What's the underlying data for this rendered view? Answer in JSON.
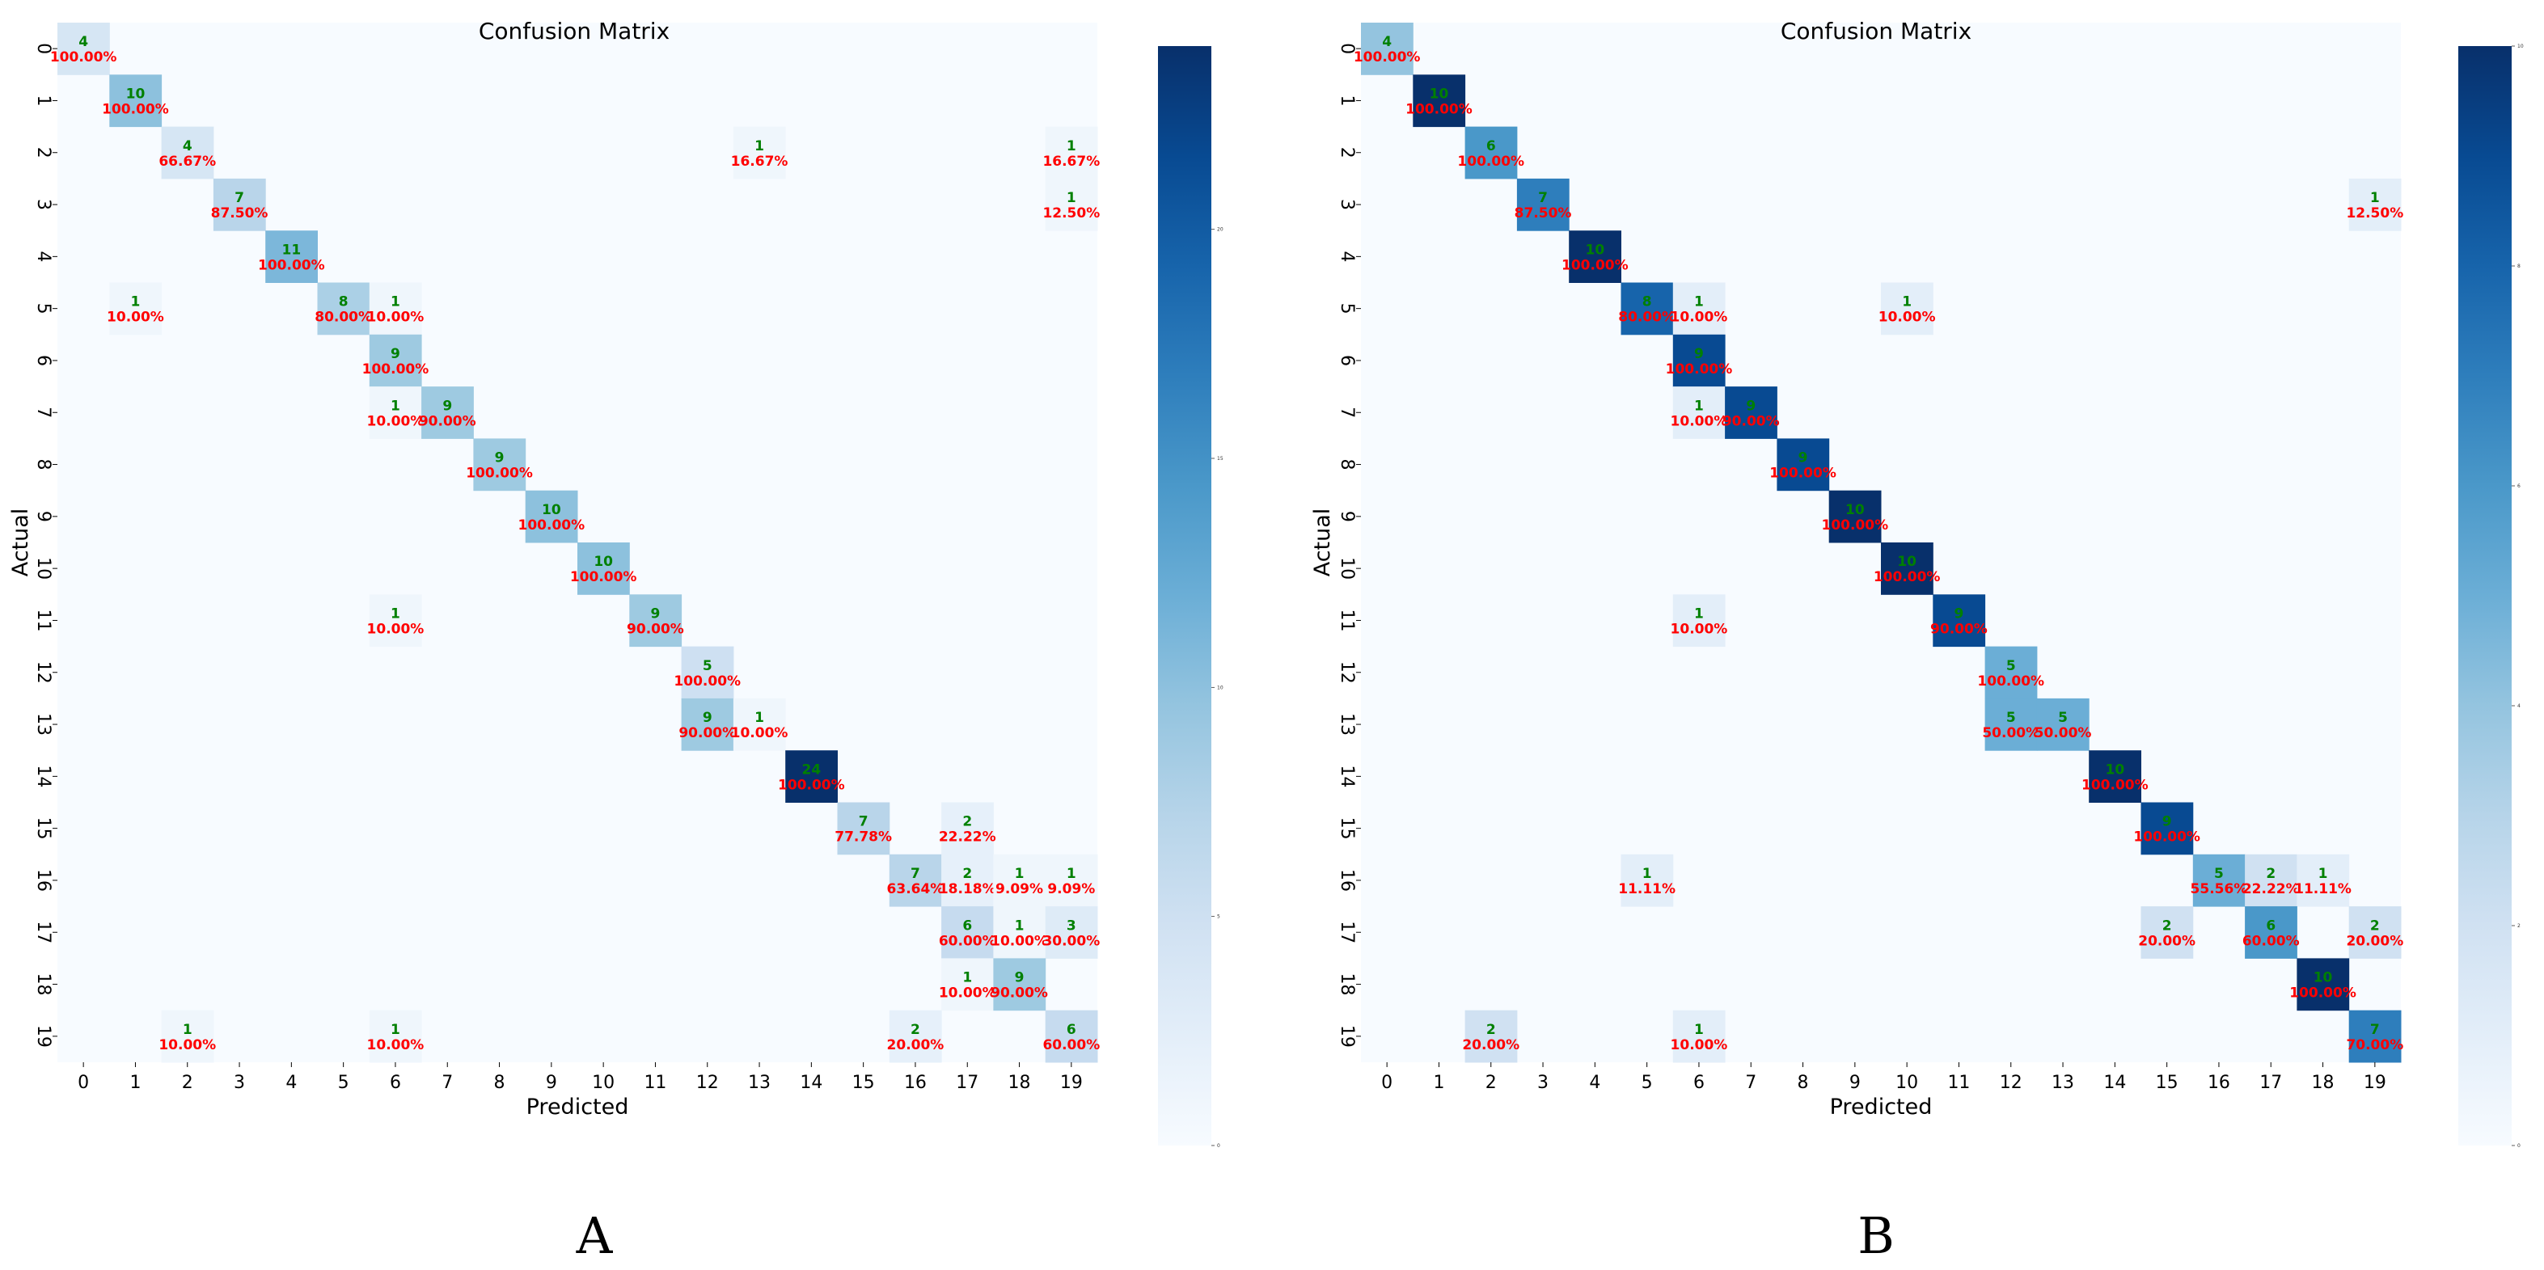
{
  "chart_data": [
    {
      "type": "heatmap",
      "panel_label": "A",
      "title": "Confusion Matrix",
      "xlabel": "Predicted",
      "ylabel": "Actual",
      "colormap": "Blues",
      "vmax": 24,
      "colorbar_ticks": [
        "0",
        "5",
        "10",
        "15",
        "20"
      ],
      "colorbar_values": [
        0,
        5,
        10,
        15,
        20
      ],
      "classes": [
        "0",
        "1",
        "2",
        "3",
        "4",
        "5",
        "6",
        "7",
        "8",
        "9",
        "10",
        "11",
        "12",
        "13",
        "14",
        "15",
        "16",
        "17",
        "18",
        "19"
      ],
      "cells": [
        {
          "row": 0,
          "col": 0,
          "count": "4",
          "percent": "100.00%",
          "v": 4
        },
        {
          "row": 1,
          "col": 1,
          "count": "10",
          "percent": "100.00%",
          "v": 10
        },
        {
          "row": 2,
          "col": 2,
          "count": "4",
          "percent": "66.67%",
          "v": 4
        },
        {
          "row": 2,
          "col": 13,
          "count": "1",
          "percent": "16.67%",
          "v": 1
        },
        {
          "row": 2,
          "col": 19,
          "count": "1",
          "percent": "16.67%",
          "v": 1
        },
        {
          "row": 3,
          "col": 3,
          "count": "7",
          "percent": "87.50%",
          "v": 7
        },
        {
          "row": 3,
          "col": 19,
          "count": "1",
          "percent": "12.50%",
          "v": 1
        },
        {
          "row": 4,
          "col": 4,
          "count": "11",
          "percent": "100.00%",
          "v": 11
        },
        {
          "row": 5,
          "col": 1,
          "count": "1",
          "percent": "10.00%",
          "v": 1
        },
        {
          "row": 5,
          "col": 5,
          "count": "8",
          "percent": "80.00%",
          "v": 8
        },
        {
          "row": 5,
          "col": 6,
          "count": "1",
          "percent": "10.00%",
          "v": 1
        },
        {
          "row": 6,
          "col": 6,
          "count": "9",
          "percent": "100.00%",
          "v": 9
        },
        {
          "row": 7,
          "col": 6,
          "count": "1",
          "percent": "10.00%",
          "v": 1
        },
        {
          "row": 7,
          "col": 7,
          "count": "9",
          "percent": "90.00%",
          "v": 9
        },
        {
          "row": 8,
          "col": 8,
          "count": "9",
          "percent": "100.00%",
          "v": 9
        },
        {
          "row": 9,
          "col": 9,
          "count": "10",
          "percent": "100.00%",
          "v": 10
        },
        {
          "row": 10,
          "col": 10,
          "count": "10",
          "percent": "100.00%",
          "v": 10
        },
        {
          "row": 11,
          "col": 6,
          "count": "1",
          "percent": "10.00%",
          "v": 1
        },
        {
          "row": 11,
          "col": 11,
          "count": "9",
          "percent": "90.00%",
          "v": 9
        },
        {
          "row": 12,
          "col": 12,
          "count": "5",
          "percent": "100.00%",
          "v": 5
        },
        {
          "row": 13,
          "col": 12,
          "count": "9",
          "percent": "90.00%",
          "v": 9
        },
        {
          "row": 13,
          "col": 13,
          "count": "1",
          "percent": "10.00%",
          "v": 1
        },
        {
          "row": 14,
          "col": 14,
          "count": "24",
          "percent": "100.00%",
          "v": 24
        },
        {
          "row": 15,
          "col": 15,
          "count": "7",
          "percent": "77.78%",
          "v": 7
        },
        {
          "row": 15,
          "col": 17,
          "count": "2",
          "percent": "22.22%",
          "v": 2
        },
        {
          "row": 16,
          "col": 16,
          "count": "7",
          "percent": "63.64%",
          "v": 7
        },
        {
          "row": 16,
          "col": 17,
          "count": "2",
          "percent": "18.18%",
          "v": 2
        },
        {
          "row": 16,
          "col": 18,
          "count": "1",
          "percent": "9.09%",
          "v": 1
        },
        {
          "row": 16,
          "col": 19,
          "count": "1",
          "percent": "9.09%",
          "v": 1
        },
        {
          "row": 17,
          "col": 17,
          "count": "6",
          "percent": "60.00%",
          "v": 6
        },
        {
          "row": 17,
          "col": 18,
          "count": "1",
          "percent": "10.00%",
          "v": 1
        },
        {
          "row": 17,
          "col": 19,
          "count": "3",
          "percent": "30.00%",
          "v": 3
        },
        {
          "row": 18,
          "col": 17,
          "count": "1",
          "percent": "10.00%",
          "v": 1
        },
        {
          "row": 18,
          "col": 18,
          "count": "9",
          "percent": "90.00%",
          "v": 9
        },
        {
          "row": 19,
          "col": 2,
          "count": "1",
          "percent": "10.00%",
          "v": 1
        },
        {
          "row": 19,
          "col": 6,
          "count": "1",
          "percent": "10.00%",
          "v": 1
        },
        {
          "row": 19,
          "col": 16,
          "count": "2",
          "percent": "20.00%",
          "v": 2
        },
        {
          "row": 19,
          "col": 19,
          "count": "6",
          "percent": "60.00%",
          "v": 6
        }
      ]
    },
    {
      "type": "heatmap",
      "panel_label": "B",
      "title": "Confusion Matrix",
      "xlabel": "Predicted",
      "ylabel": "Actual",
      "colormap": "Blues",
      "vmax": 10,
      "colorbar_ticks": [
        "0",
        "2",
        "4",
        "6",
        "8",
        "10"
      ],
      "colorbar_values": [
        0,
        2,
        4,
        6,
        8,
        10
      ],
      "classes": [
        "0",
        "1",
        "2",
        "3",
        "4",
        "5",
        "6",
        "7",
        "8",
        "9",
        "10",
        "11",
        "12",
        "13",
        "14",
        "15",
        "16",
        "17",
        "18",
        "19"
      ],
      "cells": [
        {
          "row": 0,
          "col": 0,
          "count": "4",
          "percent": "100.00%",
          "v": 4
        },
        {
          "row": 1,
          "col": 1,
          "count": "10",
          "percent": "100.00%",
          "v": 10
        },
        {
          "row": 2,
          "col": 2,
          "count": "6",
          "percent": "100.00%",
          "v": 6
        },
        {
          "row": 3,
          "col": 3,
          "count": "7",
          "percent": "87.50%",
          "v": 7
        },
        {
          "row": 3,
          "col": 19,
          "count": "1",
          "percent": "12.50%",
          "v": 1
        },
        {
          "row": 4,
          "col": 4,
          "count": "10",
          "percent": "100.00%",
          "v": 10
        },
        {
          "row": 5,
          "col": 5,
          "count": "8",
          "percent": "80.00%",
          "v": 8
        },
        {
          "row": 5,
          "col": 6,
          "count": "1",
          "percent": "10.00%",
          "v": 1
        },
        {
          "row": 5,
          "col": 10,
          "count": "1",
          "percent": "10.00%",
          "v": 1
        },
        {
          "row": 6,
          "col": 6,
          "count": "9",
          "percent": "100.00%",
          "v": 9
        },
        {
          "row": 7,
          "col": 6,
          "count": "1",
          "percent": "10.00%",
          "v": 1
        },
        {
          "row": 7,
          "col": 7,
          "count": "9",
          "percent": "90.00%",
          "v": 9
        },
        {
          "row": 8,
          "col": 8,
          "count": "9",
          "percent": "100.00%",
          "v": 9
        },
        {
          "row": 9,
          "col": 9,
          "count": "10",
          "percent": "100.00%",
          "v": 10
        },
        {
          "row": 10,
          "col": 10,
          "count": "10",
          "percent": "100.00%",
          "v": 10
        },
        {
          "row": 11,
          "col": 6,
          "count": "1",
          "percent": "10.00%",
          "v": 1
        },
        {
          "row": 11,
          "col": 11,
          "count": "9",
          "percent": "90.00%",
          "v": 9
        },
        {
          "row": 12,
          "col": 12,
          "count": "5",
          "percent": "100.00%",
          "v": 5
        },
        {
          "row": 13,
          "col": 12,
          "count": "5",
          "percent": "50.00%",
          "v": 5
        },
        {
          "row": 13,
          "col": 13,
          "count": "5",
          "percent": "50.00%",
          "v": 5
        },
        {
          "row": 14,
          "col": 14,
          "count": "10",
          "percent": "100.00%",
          "v": 10
        },
        {
          "row": 15,
          "col": 15,
          "count": "9",
          "percent": "100.00%",
          "v": 9
        },
        {
          "row": 16,
          "col": 5,
          "count": "1",
          "percent": "11.11%",
          "v": 1
        },
        {
          "row": 16,
          "col": 16,
          "count": "5",
          "percent": "55.56%",
          "v": 5
        },
        {
          "row": 16,
          "col": 17,
          "count": "2",
          "percent": "22.22%",
          "v": 2
        },
        {
          "row": 16,
          "col": 18,
          "count": "1",
          "percent": "11.11%",
          "v": 1
        },
        {
          "row": 17,
          "col": 15,
          "count": "2",
          "percent": "20.00%",
          "v": 2
        },
        {
          "row": 17,
          "col": 17,
          "count": "6",
          "percent": "60.00%",
          "v": 6
        },
        {
          "row": 17,
          "col": 19,
          "count": "2",
          "percent": "20.00%",
          "v": 2
        },
        {
          "row": 18,
          "col": 18,
          "count": "10",
          "percent": "100.00%",
          "v": 10
        },
        {
          "row": 19,
          "col": 2,
          "count": "2",
          "percent": "20.00%",
          "v": 2
        },
        {
          "row": 19,
          "col": 6,
          "count": "1",
          "percent": "10.00%",
          "v": 1
        },
        {
          "row": 19,
          "col": 19,
          "count": "7",
          "percent": "70.00%",
          "v": 7
        }
      ]
    }
  ]
}
